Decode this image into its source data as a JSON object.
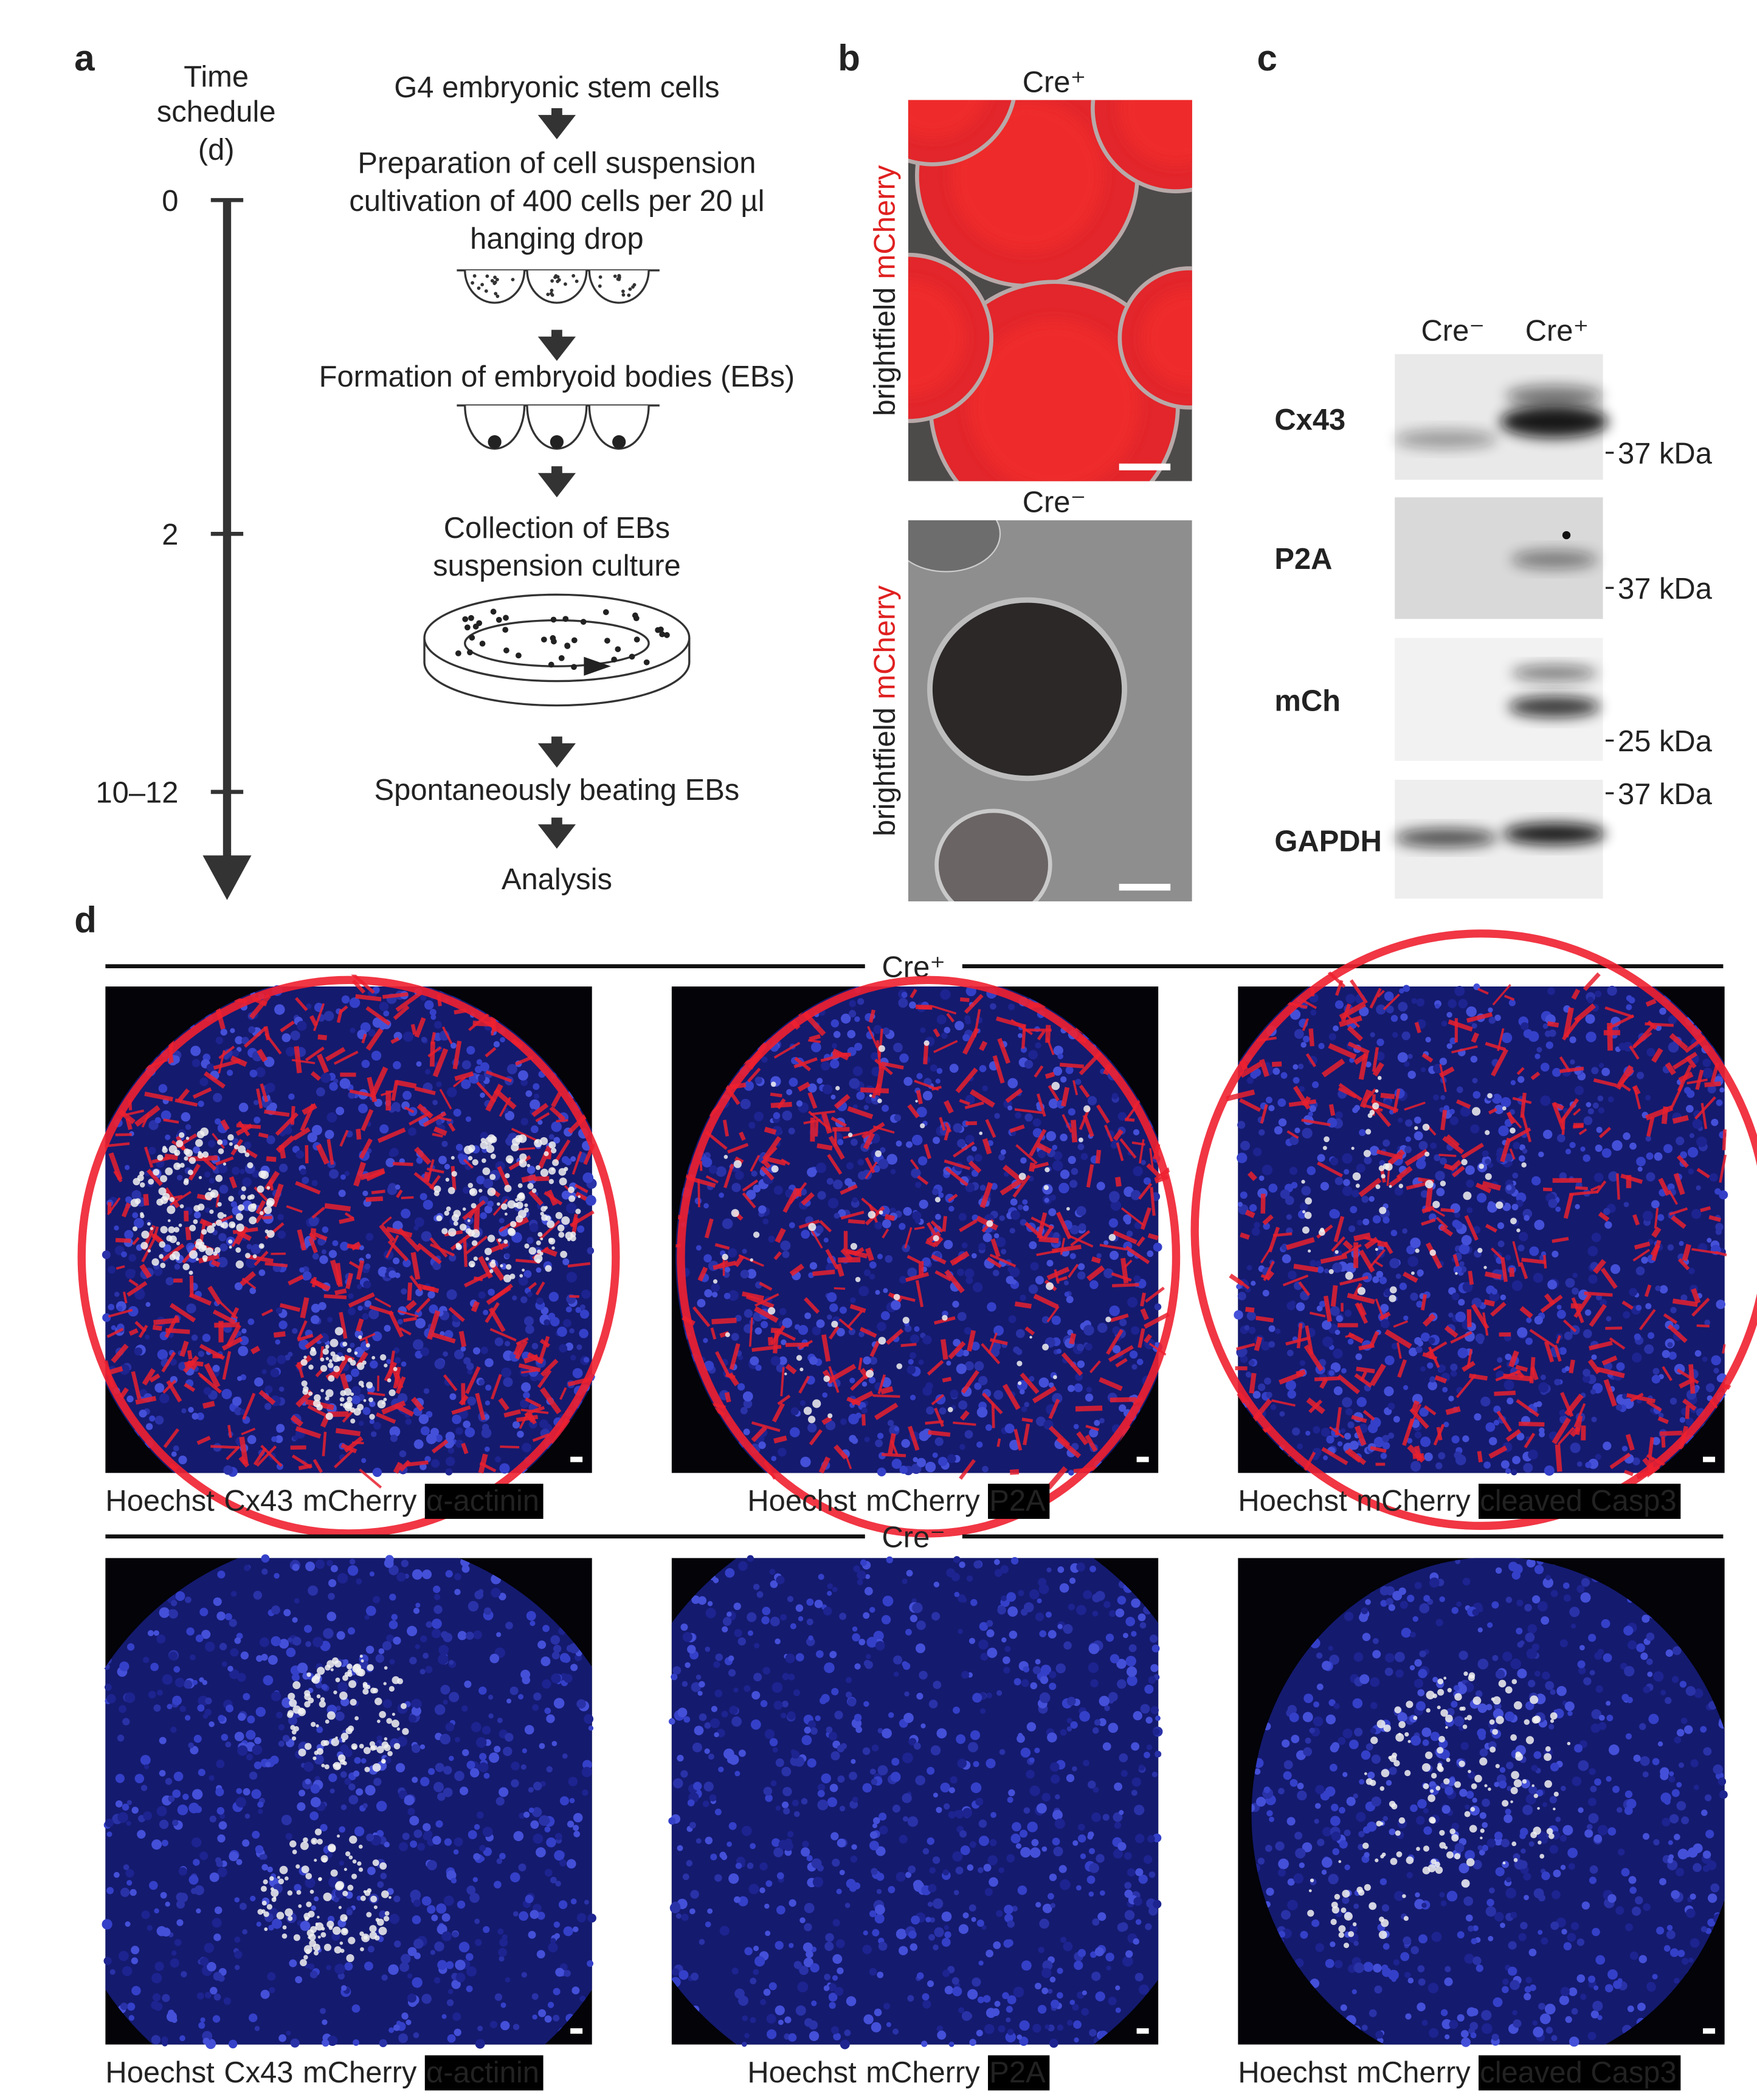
{
  "panel_labels": [
    "a",
    "b",
    "c",
    "d"
  ],
  "panel_a": {
    "time_title": [
      "Time",
      "schedule",
      "(d)"
    ],
    "ticks": [
      "0",
      "2",
      "10–12"
    ],
    "steps": [
      "G4 embryonic stem cells",
      "Preparation of cell suspension",
      "cultivation of 400 cells per 20 µl",
      "hanging drop",
      "Formation of embryoid bodies (EBs)",
      "Collection of EBs",
      "suspension culture",
      "Spontaneously beating EBs",
      "Analysis"
    ]
  },
  "panel_b": {
    "images": [
      {
        "condition": "Cre⁺",
        "label": [
          {
            "text": "brightfield",
            "color": "#222222"
          },
          {
            "text": "mCherry",
            "color": "#e02020"
          }
        ]
      },
      {
        "condition": "Cre⁻",
        "label": [
          {
            "text": "brightfield",
            "color": "#222222"
          },
          {
            "text": "mCherry",
            "color": "#e02020"
          }
        ]
      }
    ]
  },
  "panel_c": {
    "lanes": [
      "Cre⁻",
      "Cre⁺"
    ],
    "blots": [
      {
        "protein": "Cx43",
        "marker": "37 kDa"
      },
      {
        "protein": "P2A",
        "marker": "37 kDa"
      },
      {
        "protein": "mCh",
        "marker": "25 kDa"
      },
      {
        "protein": "GAPDH",
        "marker": "37 kDa"
      }
    ]
  },
  "panel_d": {
    "rows": [
      {
        "condition": "Cre⁺",
        "captions": [
          [
            {
              "text": "Hoechst",
              "color": "#3a3fb8"
            },
            {
              "text": "Cx43",
              "color": "#4caf3c"
            },
            {
              "text": "mCherry",
              "color": "#e02020"
            },
            {
              "text": "α-actinin",
              "color": "#ffffff",
              "background": "#000000"
            }
          ],
          [
            {
              "text": "Hoechst",
              "color": "#3a3fb8"
            },
            {
              "text": "mCherry",
              "color": "#e02020"
            },
            {
              "text": "P2A",
              "color": "#ffffff",
              "background": "#000000"
            }
          ],
          [
            {
              "text": "Hoechst",
              "color": "#3a3fb8"
            },
            {
              "text": "mCherry",
              "color": "#e02020"
            },
            {
              "text": "cleaved Casp3",
              "color": "#ffffff",
              "background": "#000000"
            }
          ]
        ]
      },
      {
        "condition": "Cre⁻",
        "captions": [
          [
            {
              "text": "Hoechst",
              "color": "#3a3fb8"
            },
            {
              "text": "Cx43",
              "color": "#4caf3c"
            },
            {
              "text": "mCherry",
              "color": "#e02020"
            },
            {
              "text": "α-actinin",
              "color": "#ffffff",
              "background": "#000000"
            }
          ],
          [
            {
              "text": "Hoechst",
              "color": "#3a3fb8"
            },
            {
              "text": "mCherry",
              "color": "#e02020"
            },
            {
              "text": "P2A",
              "color": "#ffffff",
              "background": "#000000"
            }
          ],
          [
            {
              "text": "Hoechst",
              "color": "#3a3fb8"
            },
            {
              "text": "mCherry",
              "color": "#e02020"
            },
            {
              "text": "cleaved Casp3",
              "color": "#ffffff",
              "background": "#000000"
            }
          ]
        ]
      }
    ]
  }
}
